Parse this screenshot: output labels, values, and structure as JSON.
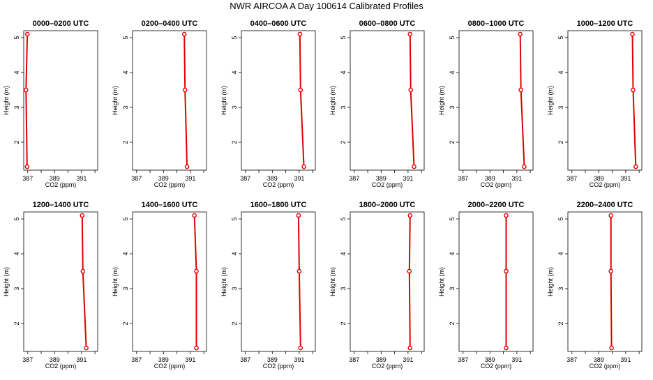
{
  "figure": {
    "title": "NWR AIRCOA A  Day 100614  Calibrated Profiles"
  },
  "colors": {
    "profile": "#e00000",
    "axis": "#000000"
  },
  "panel_axes": {
    "xlabel": "CO2 (ppm)",
    "ylabel": "Height (m)",
    "xlim": [
      386.7,
      392.2
    ],
    "ylim": [
      1.2,
      5.2
    ],
    "x_ticks": [
      387,
      388,
      389,
      390,
      391,
      392
    ],
    "x_tick_labels": [
      "387",
      "",
      "389",
      "",
      "391",
      ""
    ],
    "y_ticks": [
      2,
      3,
      4,
      5
    ],
    "y_tick_labels": [
      "2",
      "3",
      "4",
      "5"
    ]
  },
  "chart_data": [
    {
      "type": "line",
      "title": "0000–0200 UTC",
      "x": [
        386.97,
        386.87,
        386.95
      ],
      "y": [
        5.1,
        3.5,
        1.3
      ]
    },
    {
      "type": "line",
      "title": "0200–0400 UTC",
      "x": [
        390.55,
        390.6,
        390.75
      ],
      "y": [
        5.1,
        3.5,
        1.3
      ]
    },
    {
      "type": "line",
      "title": "0400–0600 UTC",
      "x": [
        391.05,
        391.1,
        391.35
      ],
      "y": [
        5.1,
        3.5,
        1.3
      ]
    },
    {
      "type": "line",
      "title": "0600–0800 UTC",
      "x": [
        391.15,
        391.2,
        391.45
      ],
      "y": [
        5.1,
        3.5,
        1.3
      ]
    },
    {
      "type": "line",
      "title": "0800–1000 UTC",
      "x": [
        391.25,
        391.3,
        391.55
      ],
      "y": [
        5.1,
        3.5,
        1.3
      ]
    },
    {
      "type": "line",
      "title": "1000–1200 UTC",
      "x": [
        391.5,
        391.55,
        391.75
      ],
      "y": [
        5.1,
        3.5,
        1.3
      ]
    },
    {
      "type": "line",
      "title": "1200–1400 UTC",
      "x": [
        391.05,
        391.1,
        391.35
      ],
      "y": [
        5.1,
        3.5,
        1.3
      ]
    },
    {
      "type": "line",
      "title": "1400–1600 UTC",
      "x": [
        391.3,
        391.45,
        391.45
      ],
      "y": [
        5.1,
        3.5,
        1.3
      ]
    },
    {
      "type": "line",
      "title": "1600–1800 UTC",
      "x": [
        390.95,
        391.0,
        391.1
      ],
      "y": [
        5.1,
        3.5,
        1.3
      ]
    },
    {
      "type": "line",
      "title": "1800–2000 UTC",
      "x": [
        391.15,
        391.1,
        391.15
      ],
      "y": [
        5.1,
        3.5,
        1.3
      ]
    },
    {
      "type": "line",
      "title": "2000–2200 UTC",
      "x": [
        390.2,
        390.2,
        390.2
      ],
      "y": [
        5.1,
        3.5,
        1.3
      ]
    },
    {
      "type": "line",
      "title": "2200–2400 UTC",
      "x": [
        389.9,
        389.9,
        389.95
      ],
      "y": [
        5.1,
        3.5,
        1.3
      ]
    }
  ]
}
